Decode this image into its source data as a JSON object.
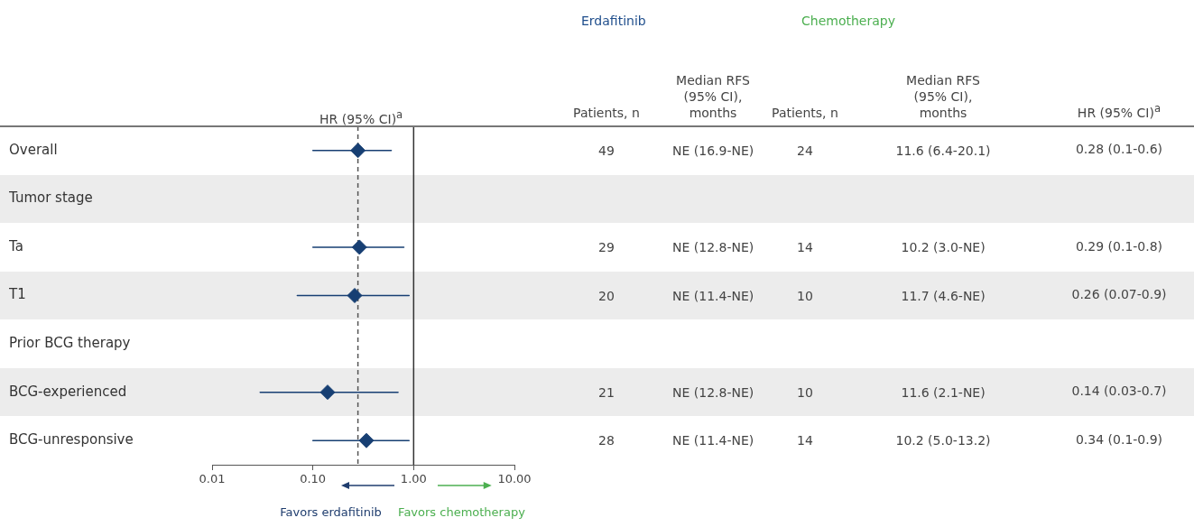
{
  "chart_data": {
    "type": "scatter",
    "orientation": "horizontal",
    "xlabel": "HR (95% CI)$^{a}$",
    "categories": [
      "Overall",
      "Tumor stage",
      "Ta",
      "T1",
      "Prior BCG therapy",
      "BCG-experienced",
      "BCG-unresponsive"
    ],
    "series": [
      {
        "color": "#173f73",
        "values": [
          0.28,
          null,
          0.29,
          0.26,
          null,
          0.14,
          0.34
        ],
        "errors": [
          [
            0.1,
            0.6
          ],
          null,
          [
            0.1,
            0.8
          ],
          [
            0.07,
            0.9
          ],
          null,
          [
            0.03,
            0.7
          ],
          [
            0.1,
            0.9
          ]
        ],
        "value_labels": [
          "0.28 (0.1-0.6)",
          null,
          "0.29 (0.1-0.8)",
          "0.26 (0.07-0.9)",
          null,
          "0.14 (0.03-0.7)",
          "0.34 (0.1-0.9)"
        ]
      }
    ],
    "marker": "diamond",
    "log": "x",
    "xlim": [
      0.01,
      10
    ],
    "xticks": [
      {
        "value": 0.01,
        "label": "0.01"
      },
      {
        "value": 0.1,
        "label": "0.10"
      },
      {
        "value": 1,
        "label": "1.00"
      },
      {
        "value": 10,
        "label": "10.00"
      }
    ],
    "ref_lines": [
      {
        "axis": "x",
        "value": 1,
        "color": "#333333",
        "line_style": "solid"
      },
      {
        "axis": "x",
        "value": 0.28,
        "color": "#555555",
        "line_style": "dashed"
      }
    ],
    "grid": false,
    "legend": false,
    "annotations": [
      "Erdafitinib",
      "Chemotherapy",
      "Patients, n",
      "Median RFS (95% CI), months",
      "Patients, n",
      "Median RFS (95% CI), months",
      "HR (95% CI)$^{a}$",
      "Favors erdafitinib",
      "Favors chemotherapy",
      "49",
      "NE (16.9-NE)",
      "24",
      "11.6 (6.4-20.1)",
      "29",
      "NE (12.8-NE)",
      "14",
      "10.2 (3.0-NE)",
      "20",
      "NE (11.4-NE)",
      "10",
      "11.7 (4.6-NE)",
      "21",
      "NE (12.8-NE)",
      "10",
      "11.6 (2.1-NE)",
      "28",
      "NE (11.4-NE)",
      "14",
      "10.2 (5.0-13.2)"
    ]
  }
}
